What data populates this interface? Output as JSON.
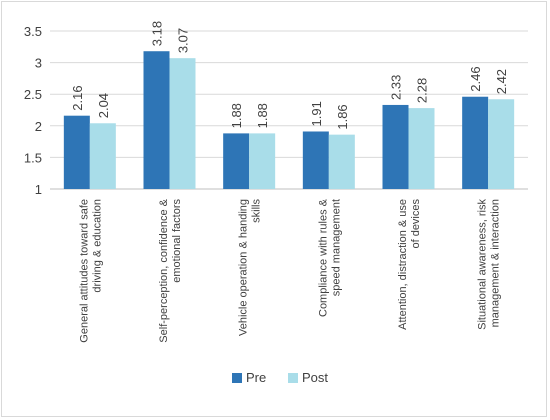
{
  "chart_data": {
    "type": "bar",
    "title": "",
    "xlabel": "",
    "ylabel": "",
    "ylim": [
      1,
      3.5
    ],
    "yticks": [
      "1",
      "1.5",
      "2",
      "2.5",
      "3",
      "3.5"
    ],
    "grid": true,
    "legend_position": "bottom",
    "categories": [
      [
        "General attitudes toward safe",
        "driving & education"
      ],
      [
        "Self-perception, confidence &",
        "emotional factors"
      ],
      [
        "Vehicle operation & handing",
        "skills"
      ],
      [
        "Compliance with rules &",
        "speed management"
      ],
      [
        "Attention, distraction & use",
        "of devices"
      ],
      [
        "Situational awareness, risk",
        "management & interaction"
      ]
    ],
    "series": [
      {
        "name": "Pre",
        "color": "#2e75b6",
        "values": [
          2.16,
          3.18,
          1.88,
          1.91,
          2.33,
          2.46
        ],
        "labels": [
          "2.16",
          "3.18",
          "1.88",
          "1.91",
          "2.33",
          "2.46"
        ]
      },
      {
        "name": "Post",
        "color": "#a9dde9",
        "values": [
          2.04,
          3.07,
          1.88,
          1.86,
          2.28,
          2.42
        ],
        "labels": [
          "2.04",
          "3.07",
          "1.88",
          "1.86",
          "2.28",
          "2.42"
        ]
      }
    ]
  }
}
